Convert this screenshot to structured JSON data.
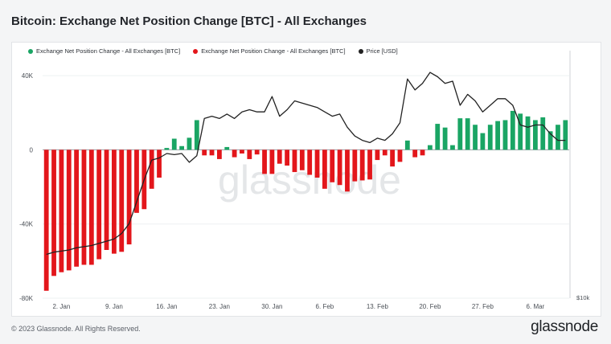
{
  "title": "Bitcoin: Exchange Net Position Change [BTC] - All Exchanges",
  "footer": "© 2023 Glassnode. All Rights Reserved.",
  "logo": "glassnode",
  "watermark": "glassnode",
  "legend": [
    {
      "label": "Exchange Net Position Change - All Exchanges [BTC]",
      "color": "#1aa564"
    },
    {
      "label": "Exchange Net Position Change - All Exchanges [BTC]",
      "color": "#e3161b"
    },
    {
      "label": "Price [USD]",
      "color": "#222222"
    }
  ],
  "chart_data": {
    "type": "bar",
    "title": "Bitcoin: Exchange Net Position Change [BTC] - All Exchanges",
    "ylim": [
      -80000,
      50000
    ],
    "y_ticks": [
      40000,
      0,
      -40000,
      -80000
    ],
    "y_tick_labels": [
      "40K",
      "0",
      "-40K",
      "-80K"
    ],
    "right_axis_label": "$10k",
    "x_ticks": [
      "2. Jan",
      "9. Jan",
      "16. Jan",
      "23. Jan",
      "30. Jan",
      "6. Feb",
      "13. Feb",
      "20. Feb",
      "27. Feb",
      "6. Mar"
    ],
    "x_tick_index": [
      2,
      9,
      16,
      23,
      30,
      37,
      44,
      51,
      58,
      65
    ],
    "positive_color": "#1aa564",
    "negative_color": "#e3161b",
    "price_color": "#222222",
    "series": [
      {
        "name": "Exchange Net Position Change - All Exchanges [BTC]",
        "values": [
          -76000,
          -68000,
          -66000,
          -65000,
          -63000,
          -62000,
          -62000,
          -59000,
          -54000,
          -56000,
          -55000,
          -51000,
          -34000,
          -32000,
          -21000,
          -15000,
          1000,
          6000,
          2000,
          6500,
          16000,
          -3000,
          -3000,
          -5000,
          1500,
          -4000,
          -2000,
          -5000,
          -2500,
          -13000,
          -13000,
          -7500,
          -8500,
          -12000,
          -11000,
          -13500,
          -15000,
          -21000,
          -17500,
          -19000,
          -22500,
          -17000,
          -16500,
          -16000,
          -5500,
          -3000,
          -9000,
          -6500,
          5000,
          -4000,
          -3000,
          2500,
          14000,
          12000,
          2500,
          17000,
          17000,
          13500,
          9000,
          13500,
          15500,
          16000,
          21000,
          19500,
          18000,
          16000,
          17500,
          10000,
          13500,
          16000
        ],
        "days": [
          "2022-12-31",
          "2023-01-01",
          "2023-01-02",
          "2023-01-03",
          "2023-01-04",
          "2023-01-05",
          "2023-01-06",
          "2023-01-07",
          "2023-01-08",
          "2023-01-09",
          "2023-01-10",
          "2023-01-11",
          "2023-01-12",
          "2023-01-13",
          "2023-01-14",
          "2023-01-15",
          "2023-01-16",
          "2023-01-17",
          "2023-01-18",
          "2023-01-19",
          "2023-01-20",
          "2023-01-21",
          "2023-01-22",
          "2023-01-23",
          "2023-01-24",
          "2023-01-25",
          "2023-01-26",
          "2023-01-27",
          "2023-01-28",
          "2023-01-29",
          "2023-01-30",
          "2023-01-31",
          "2023-02-01",
          "2023-02-02",
          "2023-02-03",
          "2023-02-04",
          "2023-02-05",
          "2023-02-06",
          "2023-02-07",
          "2023-02-08",
          "2023-02-09",
          "2023-02-10",
          "2023-02-11",
          "2023-02-12",
          "2023-02-13",
          "2023-02-14",
          "2023-02-15",
          "2023-02-16",
          "2023-02-17",
          "2023-02-18",
          "2023-02-19",
          "2023-02-20",
          "2023-02-21",
          "2023-02-22",
          "2023-02-23",
          "2023-02-24",
          "2023-02-25",
          "2023-02-26",
          "2023-02-27",
          "2023-02-28",
          "2023-03-01",
          "2023-03-02",
          "2023-03-03",
          "2023-03-04",
          "2023-03-05",
          "2023-03-06",
          "2023-03-07",
          "2023-03-08",
          "2023-03-09",
          "2023-03-10"
        ]
      },
      {
        "name": "Price [USD]",
        "values": [
          16500,
          16600,
          16650,
          16700,
          16800,
          16850,
          16900,
          17000,
          17100,
          17200,
          17450,
          17900,
          18900,
          19900,
          20800,
          20900,
          21100,
          21050,
          21100,
          20700,
          21000,
          22700,
          22800,
          22700,
          22900,
          22700,
          23000,
          23100,
          23000,
          23000,
          23700,
          22800,
          23100,
          23500,
          23400,
          23300,
          23200,
          23000,
          22800,
          22900,
          22300,
          21900,
          21700,
          21600,
          21800,
          21700,
          22000,
          22500,
          24500,
          24000,
          24300,
          24800,
          24600,
          24300,
          24400,
          23300,
          23800,
          23500,
          23000,
          23300,
          23600,
          23600,
          23300,
          22400,
          22300,
          22400,
          22400,
          22000,
          21700,
          21700
        ]
      }
    ],
    "price_scale": {
      "min": 14500,
      "max": 25500
    }
  }
}
